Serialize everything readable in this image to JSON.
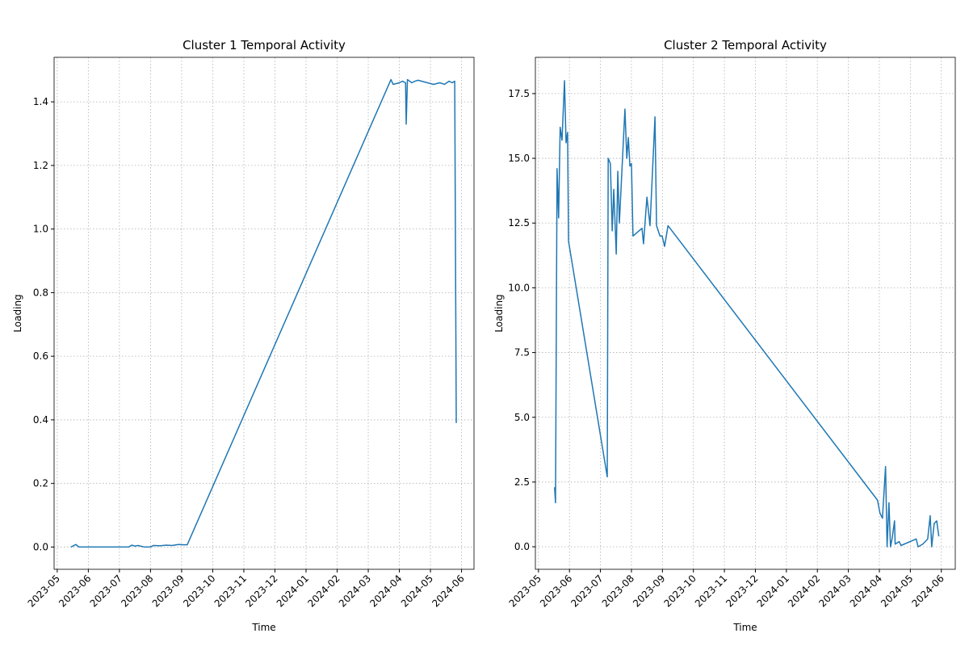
{
  "chart_data": [
    {
      "type": "line",
      "title": "Cluster 1 Temporal Activity",
      "x_label": "Time",
      "y_label": "Loading",
      "xlim": [
        -0.1,
        13.4
      ],
      "ylim": [
        -0.07,
        1.54
      ],
      "grid": true,
      "xticks": [
        {
          "value": 0,
          "label": "2023-05"
        },
        {
          "value": 1,
          "label": "2023-06"
        },
        {
          "value": 2,
          "label": "2023-07"
        },
        {
          "value": 3,
          "label": "2023-08"
        },
        {
          "value": 4,
          "label": "2023-09"
        },
        {
          "value": 5,
          "label": "2023-10"
        },
        {
          "value": 6,
          "label": "2023-11"
        },
        {
          "value": 7,
          "label": "2023-12"
        },
        {
          "value": 8,
          "label": "2024-01"
        },
        {
          "value": 9,
          "label": "2024-02"
        },
        {
          "value": 10,
          "label": "2024-03"
        },
        {
          "value": 11,
          "label": "2024-04"
        },
        {
          "value": 12,
          "label": "2024-05"
        },
        {
          "value": 13,
          "label": "2024-06"
        }
      ],
      "yticks": [
        {
          "value": 0,
          "label": "0.0"
        },
        0.2,
        0.4,
        0.6,
        0.8,
        {
          "value": 1,
          "label": "1.0"
        },
        1.2,
        1.4
      ],
      "x": [
        0.44,
        0.6,
        0.7,
        2.3,
        2.4,
        2.5,
        2.6,
        2.8,
        3.0,
        3.1,
        3.3,
        3.5,
        3.7,
        3.9,
        4.05,
        4.18,
        10.73,
        10.8,
        11.0,
        11.1,
        11.2,
        11.22,
        11.26,
        11.4,
        11.5,
        11.6,
        12.1,
        12.3,
        12.45,
        12.6,
        12.7,
        12.78,
        12.83
      ],
      "series": [
        {
          "color": "#1f77b4",
          "values": [
            0,
            0.008,
            0,
            0,
            0.006,
            0.003,
            0.005,
            0,
            0,
            0.005,
            0.004,
            0.006,
            0.005,
            0.008,
            0.007,
            0.007,
            1.47,
            1.455,
            1.46,
            1.465,
            1.46,
            1.33,
            1.47,
            1.46,
            1.465,
            1.468,
            1.455,
            1.46,
            1.455,
            1.465,
            1.46,
            1.465,
            0.39
          ]
        }
      ]
    },
    {
      "type": "line",
      "title": "Cluster 2 Temporal Activity",
      "x_label": "Time",
      "y_label": "Loading",
      "xlim": [
        -0.1,
        13.45
      ],
      "ylim": [
        -0.87,
        18.9
      ],
      "grid": true,
      "xticks": [
        {
          "value": 0,
          "label": "2023-05"
        },
        {
          "value": 1,
          "label": "2023-06"
        },
        {
          "value": 2,
          "label": "2023-07"
        },
        {
          "value": 3,
          "label": "2023-08"
        },
        {
          "value": 4,
          "label": "2023-09"
        },
        {
          "value": 5,
          "label": "2023-10"
        },
        {
          "value": 6,
          "label": "2023-11"
        },
        {
          "value": 7,
          "label": "2023-12"
        },
        {
          "value": 8,
          "label": "2024-01"
        },
        {
          "value": 9,
          "label": "2024-02"
        },
        {
          "value": 10,
          "label": "2024-03"
        },
        {
          "value": 11,
          "label": "2024-04"
        },
        {
          "value": 12,
          "label": "2024-05"
        },
        {
          "value": 13,
          "label": "2024-06"
        }
      ],
      "yticks": [
        {
          "value": 0,
          "label": "0.0"
        },
        2.5,
        {
          "value": 5,
          "label": "5.0"
        },
        7.5,
        {
          "value": 10,
          "label": "10.0"
        },
        12.5,
        {
          "value": 15,
          "label": "15.0"
        },
        17.5
      ],
      "x": [
        0.52,
        0.55,
        0.6,
        0.65,
        0.7,
        0.76,
        0.84,
        0.89,
        0.94,
        0.97,
        2.22,
        2.25,
        2.32,
        2.38,
        2.43,
        2.51,
        2.56,
        2.61,
        2.79,
        2.85,
        2.9,
        2.95,
        3.0,
        3.05,
        3.34,
        3.39,
        3.5,
        3.6,
        3.76,
        3.81,
        3.92,
        3.99,
        4.07,
        4.18,
        10.94,
        11.02,
        11.1,
        11.2,
        11.25,
        11.31,
        11.36,
        11.41,
        11.49,
        11.51,
        11.64,
        11.7,
        12.19,
        12.25,
        12.4,
        12.56,
        12.64,
        12.69,
        12.77,
        12.85,
        12.92
      ],
      "series": [
        {
          "color": "#1f77b4",
          "values": [
            2.3,
            1.7,
            14.6,
            12.7,
            16.2,
            15.7,
            18.0,
            15.6,
            16.0,
            11.8,
            2.7,
            15.0,
            14.8,
            12.2,
            13.8,
            11.3,
            14.5,
            12.5,
            16.9,
            15.0,
            15.8,
            14.7,
            14.8,
            12.0,
            12.3,
            11.7,
            13.5,
            12.4,
            16.6,
            12.4,
            12.0,
            12.0,
            11.6,
            12.4,
            1.8,
            1.3,
            1.1,
            3.1,
            0.0,
            1.7,
            0.0,
            0.3,
            1.0,
            0.1,
            0.2,
            0.05,
            0.3,
            0.0,
            0.1,
            0.3,
            1.2,
            0.0,
            0.9,
            1.0,
            0.4
          ]
        }
      ]
    }
  ]
}
